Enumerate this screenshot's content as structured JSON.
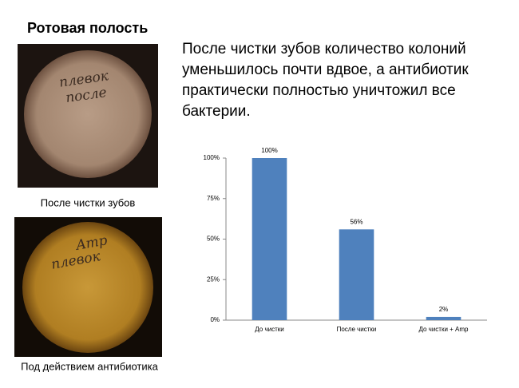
{
  "slide": {
    "title": "Ротовая полость",
    "text_lines": [
      "После чистки зубов количество колоний",
      "уменьшилось почти вдвое, а антибиотик",
      "практически полностью уничтожил все",
      "бактерии."
    ],
    "photos": [
      {
        "label_lines": [
          "плевок",
          "после"
        ],
        "caption": "После чистки зубов"
      },
      {
        "label_lines": [
          "Amp",
          "плевок"
        ],
        "caption": "Под действием антибиотика"
      }
    ]
  },
  "chart_data": {
    "type": "bar",
    "categories": [
      "До чистки",
      "После чистки",
      "До чистки + Amp"
    ],
    "values": [
      100,
      56,
      2
    ],
    "value_labels": [
      "100%",
      "56%",
      "2%"
    ],
    "color": "#4f81bd",
    "ylim": [
      0,
      100
    ],
    "yticks": [
      {
        "value": 0,
        "label": "0%"
      },
      {
        "value": 25,
        "label": "25%"
      },
      {
        "value": 50,
        "label": "50%"
      },
      {
        "value": 75,
        "label": "75%"
      },
      {
        "value": 100,
        "label": "100%"
      }
    ],
    "grid": false
  }
}
